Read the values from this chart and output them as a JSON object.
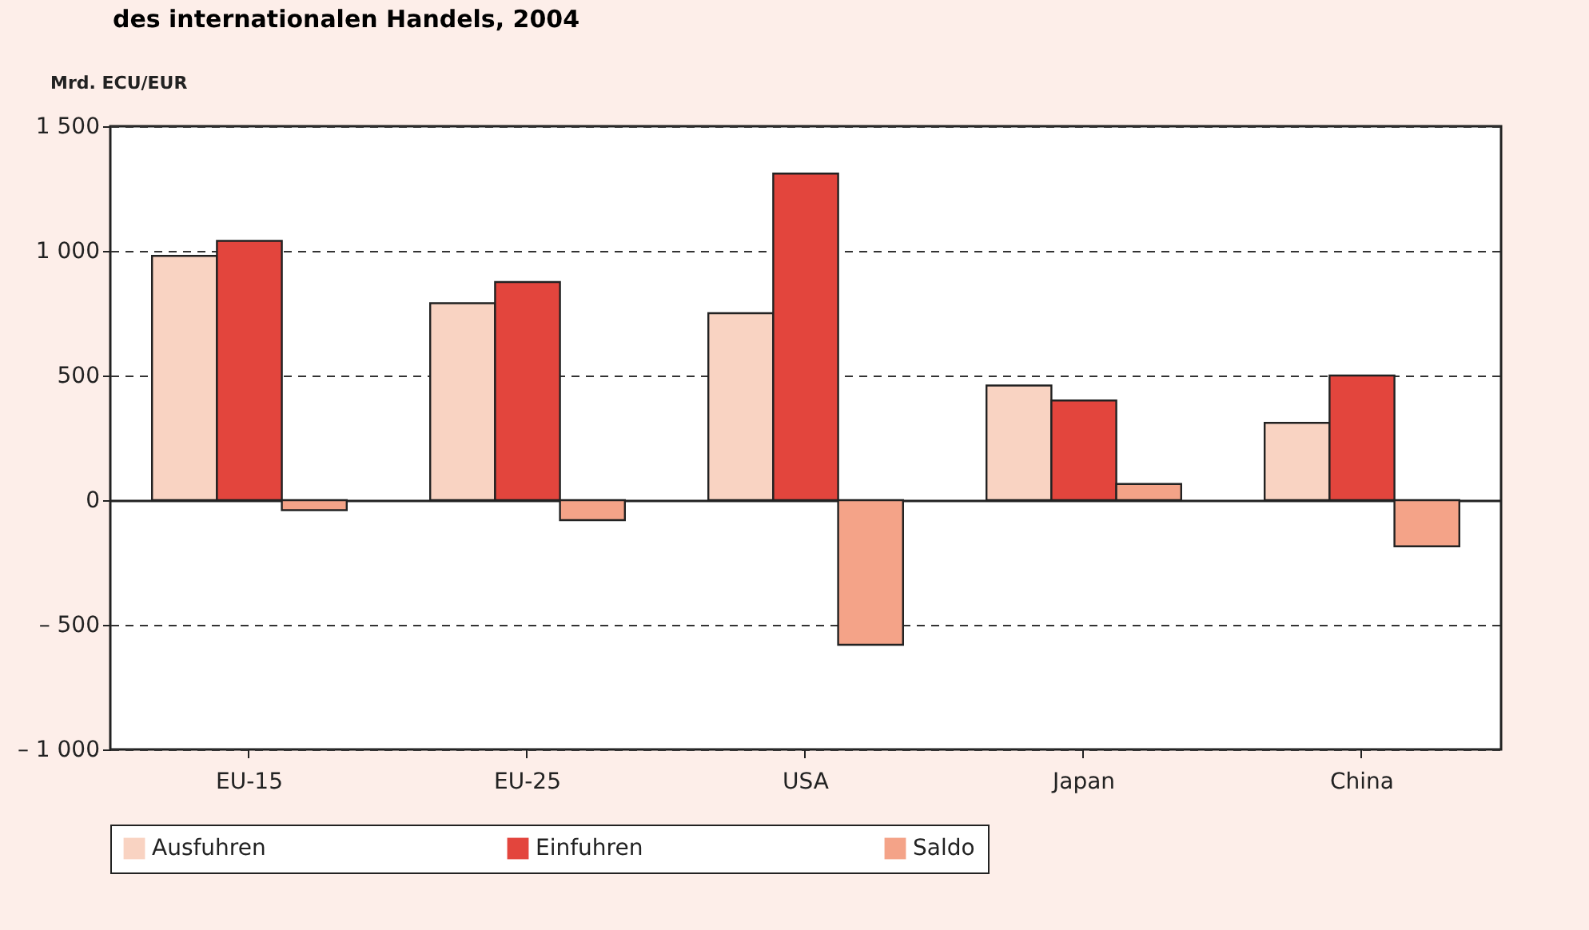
{
  "chart_data": {
    "type": "bar",
    "title": "des internationalen Handels, 2004",
    "ylabel": "Mrd. ECU/EUR",
    "categories": [
      "EU-15",
      "EU-25",
      "USA",
      "Japan",
      "China"
    ],
    "series": [
      {
        "name": "Ausfuhren",
        "color": "#f9d3c2",
        "values": [
          980,
          790,
          750,
          460,
          310
        ]
      },
      {
        "name": "Einfuhren",
        "color": "#e3453d",
        "values": [
          1040,
          875,
          1310,
          400,
          500
        ]
      },
      {
        "name": "Saldo",
        "color": "#f4a388",
        "values": [
          -40,
          -80,
          -580,
          65,
          -185
        ]
      }
    ],
    "ylim": [
      -1000,
      1500
    ],
    "yticks": [
      {
        "value": -1000,
        "label": "– 1 000"
      },
      {
        "value": -500,
        "label": "– 500"
      },
      0,
      500,
      {
        "value": 1000,
        "label": "1 000"
      },
      {
        "value": 1500,
        "label": "1 500"
      }
    ],
    "grid": "y",
    "legend": "bottom"
  }
}
